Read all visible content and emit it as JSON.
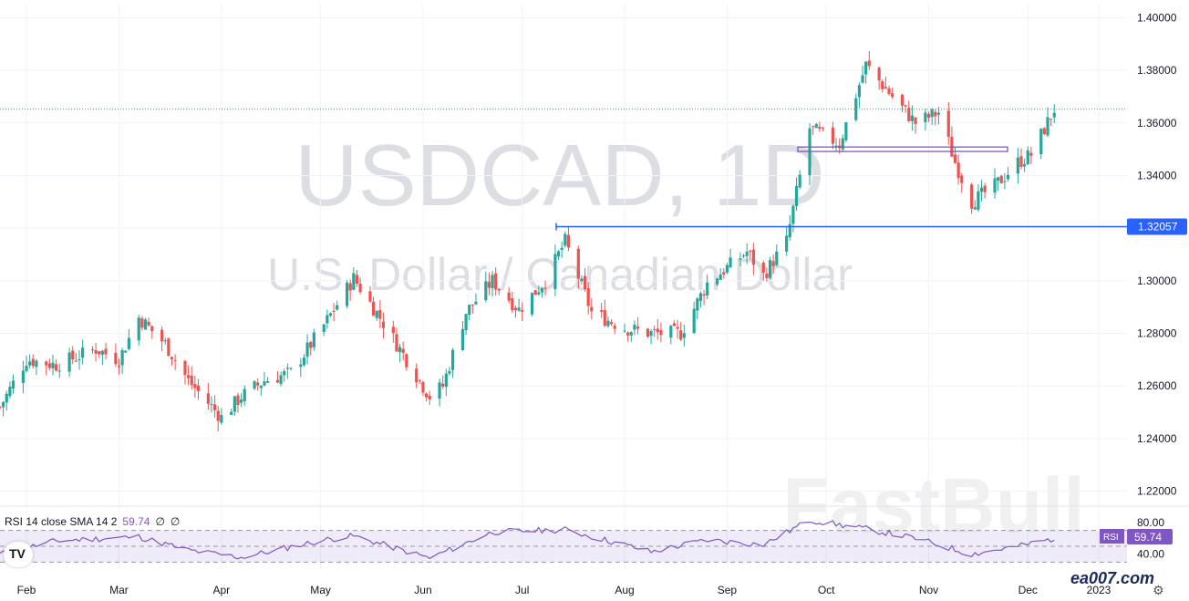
{
  "window": {
    "symbol_watermark": "USDCAD, 1D",
    "name_watermark": "U.S. Dollar / Canadian Dollar",
    "brand_watermark": "FastBull"
  },
  "price_axis": {
    "ticks": [
      "1.40000",
      "1.38000",
      "1.36000",
      "1.34000",
      "1.32000",
      "1.30000",
      "1.28000",
      "1.26000",
      "1.24000",
      "1.22000"
    ]
  },
  "time_axis": {
    "labels": [
      "Feb",
      "Mar",
      "Apr",
      "May",
      "Jun",
      "Jul",
      "Aug",
      "Sep",
      "Oct",
      "Nov",
      "Dec",
      "2023"
    ]
  },
  "support_line": {
    "label": "1.32057",
    "color": "#2962ff"
  },
  "rsi": {
    "title": "RSI 14 close SMA 14 2",
    "value": "59.74",
    "extra1": "∅",
    "extra2": "∅",
    "badge": "RSI",
    "ticks": [
      "80.00",
      "40.00"
    ],
    "color": "#7e57c2"
  },
  "footer": {
    "site": "ea007.com",
    "gear": "⚙"
  },
  "colors": {
    "up": "#26a69a",
    "down": "#ef5350",
    "channel": "#7e57c2"
  },
  "chart_data": {
    "type": "candlestick",
    "symbol": "USDCAD",
    "interval": "1D",
    "y_range": [
      1.215,
      1.405
    ],
    "x_range": [
      "2022-01-24",
      "2022-12-31"
    ],
    "support_level": 1.32057,
    "resistance_zone": [
      1.3495,
      1.3505
    ],
    "last_close": 1.3652,
    "close_path": [
      [
        "2022-01-24",
        1.252
      ],
      [
        "2022-02-01",
        1.27
      ],
      [
        "2022-02-10",
        1.268
      ],
      [
        "2022-02-22",
        1.274
      ],
      [
        "2022-03-01",
        1.27
      ],
      [
        "2022-03-07",
        1.286
      ],
      [
        "2022-03-15",
        1.276
      ],
      [
        "2022-03-22",
        1.262
      ],
      [
        "2022-04-01",
        1.248
      ],
      [
        "2022-04-07",
        1.256
      ],
      [
        "2022-04-14",
        1.262
      ],
      [
        "2022-04-22",
        1.265
      ],
      [
        "2022-05-02",
        1.283
      ],
      [
        "2022-05-11",
        1.301
      ],
      [
        "2022-05-20",
        1.284
      ],
      [
        "2022-05-27",
        1.27
      ],
      [
        "2022-06-03",
        1.256
      ],
      [
        "2022-06-07",
        1.26
      ],
      [
        "2022-06-14",
        1.288
      ],
      [
        "2022-06-22",
        1.3
      ],
      [
        "2022-06-30",
        1.289
      ],
      [
        "2022-07-08",
        1.3
      ],
      [
        "2022-07-14",
        1.315
      ],
      [
        "2022-07-22",
        1.288
      ],
      [
        "2022-08-01",
        1.282
      ],
      [
        "2022-08-09",
        1.28
      ],
      [
        "2022-08-18",
        1.28
      ],
      [
        "2022-08-26",
        1.299
      ],
      [
        "2022-09-07",
        1.311
      ],
      [
        "2022-09-12",
        1.302
      ],
      [
        "2022-09-19",
        1.315
      ],
      [
        "2022-09-26",
        1.358
      ],
      [
        "2022-10-05",
        1.352
      ],
      [
        "2022-10-13",
        1.382
      ],
      [
        "2022-10-21",
        1.37
      ],
      [
        "2022-10-28",
        1.36
      ],
      [
        "2022-11-04",
        1.364
      ],
      [
        "2022-11-09",
        1.345
      ],
      [
        "2022-11-14",
        1.33
      ],
      [
        "2022-11-21",
        1.336
      ],
      [
        "2022-11-28",
        1.345
      ],
      [
        "2022-12-02",
        1.348
      ],
      [
        "2022-12-09",
        1.3652
      ]
    ],
    "rsi_series": {
      "name": "RSI 14 close SMA 14 2",
      "last": 59.74,
      "y_range": [
        20,
        95
      ],
      "bands": [
        70,
        50,
        30
      ],
      "path": [
        [
          "2022-01-24",
          40
        ],
        [
          "2022-02-10",
          57
        ],
        [
          "2022-03-07",
          62
        ],
        [
          "2022-03-22",
          45
        ],
        [
          "2022-04-07",
          36
        ],
        [
          "2022-05-02",
          58
        ],
        [
          "2022-05-11",
          63
        ],
        [
          "2022-06-03",
          35
        ],
        [
          "2022-06-22",
          68
        ],
        [
          "2022-07-14",
          71
        ],
        [
          "2022-08-09",
          43
        ],
        [
          "2022-08-26",
          58
        ],
        [
          "2022-09-12",
          52
        ],
        [
          "2022-09-26",
          83
        ],
        [
          "2022-10-13",
          72
        ],
        [
          "2022-10-28",
          60
        ],
        [
          "2022-11-14",
          40
        ],
        [
          "2022-11-28",
          50
        ],
        [
          "2022-12-09",
          59.74
        ]
      ]
    }
  }
}
